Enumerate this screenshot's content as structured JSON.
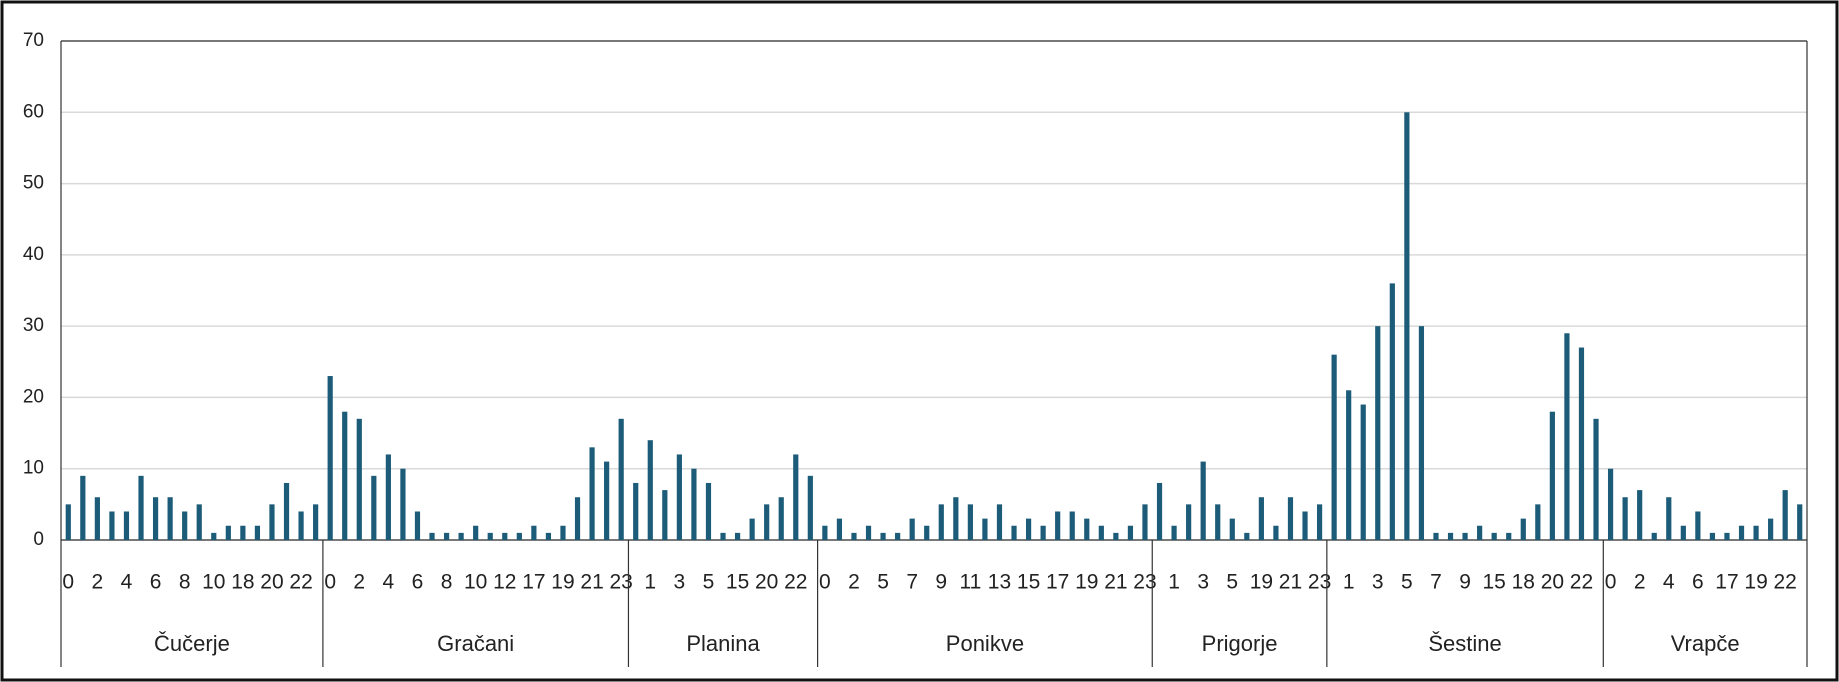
{
  "chart_data": {
    "type": "bar",
    "color": "#1d5c78",
    "ylim": [
      0,
      70
    ],
    "yticks": [
      0,
      10,
      20,
      30,
      40,
      50,
      60,
      70
    ],
    "grid": true,
    "groups": [
      {
        "name": "Čučerje",
        "categories": [
          "0",
          null,
          "2",
          null,
          "4",
          null,
          "6",
          null,
          "8",
          null,
          "10",
          null,
          "18",
          null,
          "20",
          null,
          "22",
          null
        ],
        "values": [
          5,
          9,
          6,
          4,
          4,
          9,
          6,
          6,
          4,
          5,
          1,
          2,
          2,
          2,
          5,
          8,
          4,
          5
        ]
      },
      {
        "name": "Gračani",
        "categories": [
          "0",
          null,
          "2",
          null,
          "4",
          null,
          "6",
          null,
          "8",
          null,
          "10",
          null,
          "12",
          null,
          "17",
          null,
          "19",
          null,
          "21",
          null,
          "23"
        ],
        "values": [
          23,
          18,
          17,
          9,
          12,
          10,
          4,
          1,
          1,
          1,
          2,
          1,
          1,
          1,
          2,
          1,
          2,
          6,
          13,
          11,
          17
        ]
      },
      {
        "name": "Planina",
        "categories": [
          null,
          "1",
          null,
          "3",
          null,
          "5",
          null,
          "15",
          null,
          "20",
          null,
          "22",
          null
        ],
        "values": [
          8,
          14,
          7,
          12,
          10,
          8,
          1,
          1,
          3,
          5,
          6,
          12,
          9
        ]
      },
      {
        "name": "Ponikve",
        "categories": [
          "0",
          null,
          "2",
          null,
          "5",
          null,
          "7",
          null,
          "9",
          null,
          "11",
          null,
          "13",
          null,
          "15",
          null,
          "17",
          null,
          "19",
          null,
          "21",
          null,
          "23"
        ],
        "values": [
          2,
          3,
          1,
          2,
          1,
          1,
          3,
          2,
          5,
          6,
          5,
          3,
          5,
          2,
          3,
          2,
          4,
          4,
          3,
          2,
          1,
          2,
          5
        ]
      },
      {
        "name": "Prigorje",
        "categories": [
          null,
          "1",
          null,
          "3",
          null,
          "5",
          null,
          "19",
          null,
          "21",
          null,
          "23"
        ],
        "values": [
          8,
          2,
          5,
          11,
          5,
          3,
          1,
          6,
          2,
          6,
          4,
          5
        ]
      },
      {
        "name": "Šestine",
        "categories": [
          null,
          "1",
          null,
          "3",
          null,
          "5",
          null,
          "7",
          null,
          "9",
          null,
          "15",
          null,
          "18",
          null,
          "20",
          null,
          "22",
          null
        ],
        "values": [
          26,
          21,
          19,
          30,
          36,
          60,
          30,
          1,
          1,
          1,
          2,
          1,
          1,
          3,
          5,
          18,
          29,
          27,
          17
        ]
      },
      {
        "name": "Vrapče",
        "categories": [
          "0",
          null,
          "2",
          null,
          "4",
          null,
          "6",
          null,
          "17",
          null,
          "19",
          null,
          "22",
          null
        ],
        "values": [
          10,
          6,
          7,
          1,
          6,
          2,
          4,
          1,
          1,
          2,
          2,
          3,
          7,
          5
        ]
      }
    ]
  }
}
